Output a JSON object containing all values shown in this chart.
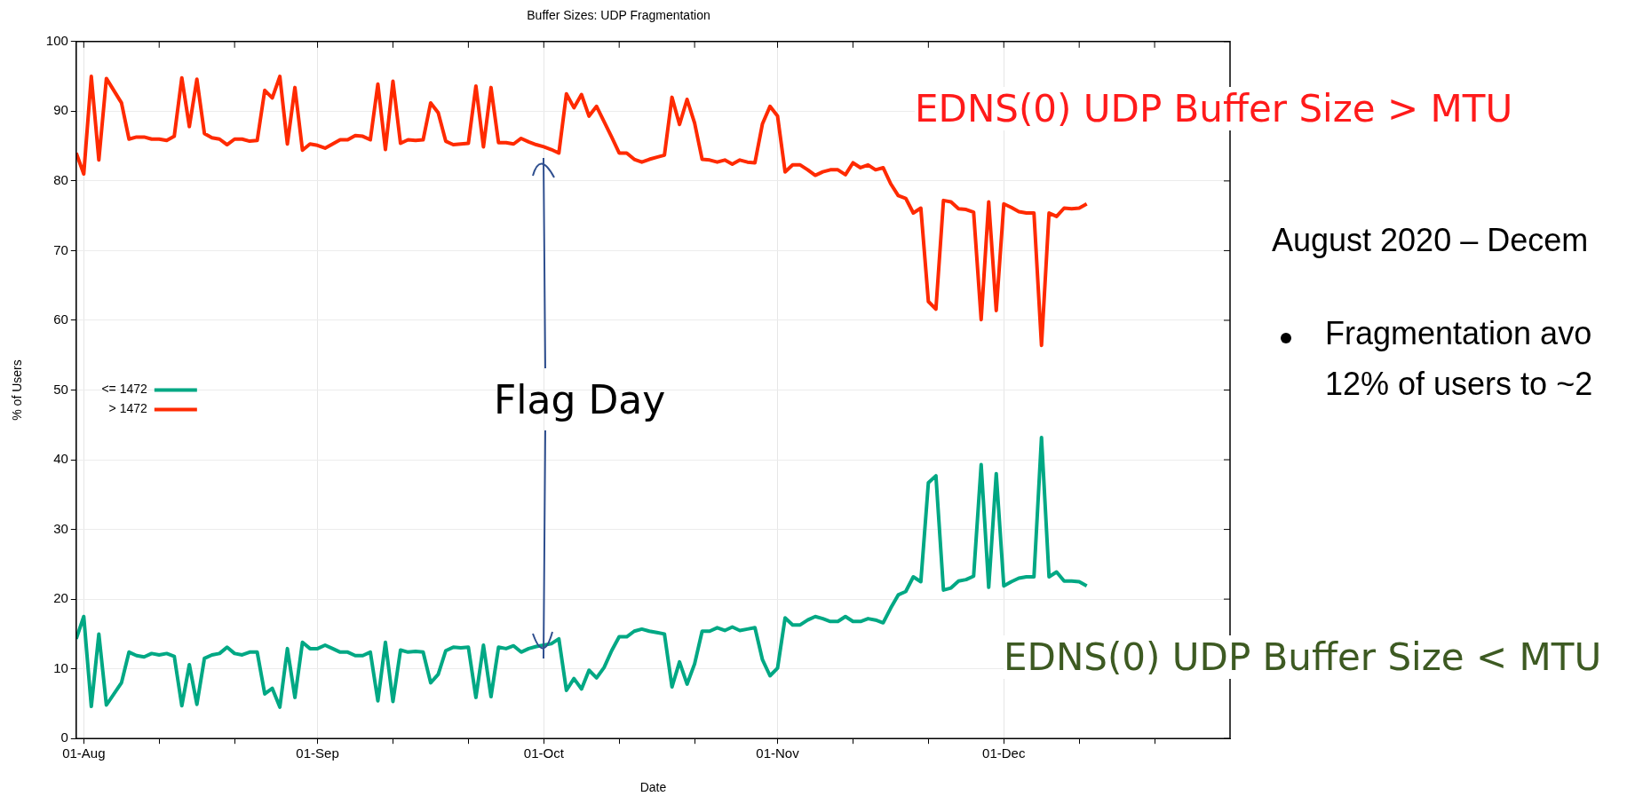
{
  "chart_data": {
    "type": "line",
    "title": "Buffer Sizes: UDP Fragmentation",
    "xlabel": "Date",
    "ylabel": "% of Users",
    "x": [
      "--07-31",
      "--08-01",
      "--08-02",
      "--08-03",
      "--08-04",
      "--08-06",
      "--08-07",
      "--08-08",
      "--08-09",
      "--08-10",
      "--08-11",
      "--08-12",
      "--08-13",
      "--08-14",
      "--08-15",
      "--08-16",
      "--08-17",
      "--08-18",
      "--08-19",
      "--08-20",
      "--08-21",
      "--08-22",
      "--08-23",
      "--08-24",
      "--08-25",
      "--08-26",
      "--08-27",
      "--08-28",
      "--08-29",
      "--08-30",
      "--08-31",
      "--09-01",
      "--09-02",
      "--09-03",
      "--09-04",
      "--09-05",
      "--09-06",
      "--09-07",
      "--09-08",
      "--09-09",
      "--09-10",
      "--09-11",
      "--09-12",
      "--09-13",
      "--09-14",
      "--09-15",
      "--09-16",
      "--09-17",
      "--09-18",
      "--09-19",
      "--09-20",
      "--09-21",
      "--09-22",
      "--09-23",
      "--09-24",
      "--09-25",
      "--09-26",
      "--09-27",
      "--09-28",
      "--09-29",
      "--09-30",
      "--10-01",
      "--10-02",
      "--10-03",
      "--10-04",
      "--10-05",
      "--10-06",
      "--10-07",
      "--10-08",
      "--10-09",
      "--10-10",
      "--10-11",
      "--10-12",
      "--10-13",
      "--10-14",
      "--10-15",
      "--10-16",
      "--10-17",
      "--10-18",
      "--10-19",
      "--10-20",
      "--10-21",
      "--10-22",
      "--10-23",
      "--10-24",
      "--10-25",
      "--10-26",
      "--10-27",
      "--10-28",
      "--10-29",
      "--10-30",
      "--10-31",
      "--11-01",
      "--11-02",
      "--11-03",
      "--11-04",
      "--11-05",
      "--11-06",
      "--11-07",
      "--11-08",
      "--11-09",
      "--11-10",
      "--11-11",
      "--11-12",
      "--11-13",
      "--11-14",
      "--11-15",
      "--11-16",
      "--11-17",
      "--11-18",
      "--11-19",
      "--11-20",
      "--11-21",
      "--11-22",
      "--11-23",
      "--11-24",
      "--11-25",
      "--11-26",
      "--11-27",
      "--11-28",
      "--11-29",
      "--11-30",
      "--12-01",
      "--12-02",
      "--12-03",
      "--12-04",
      "--12-05",
      "--12-06",
      "--12-07",
      "--12-08",
      "--12-09",
      "--12-10",
      "--12-11",
      "--12-12"
    ],
    "series": [
      {
        "name": "<= 1472",
        "color": "#00a884",
        "values": [
          14.3,
          17.5,
          4.6,
          15,
          4.8,
          8,
          12.4,
          11.9,
          11.7,
          12.2,
          12,
          12.2,
          11.8,
          4.7,
          10.6,
          4.9,
          11.5,
          12,
          12.2,
          13.1,
          12.2,
          12,
          12.4,
          12.4,
          6.4,
          7.2,
          4.5,
          12.9,
          5.9,
          13.8,
          12.9,
          12.9,
          13.4,
          12.9,
          12.4,
          12.4,
          11.9,
          11.9,
          12.4,
          5.4,
          13.8,
          5.3,
          12.7,
          12.4,
          12.5,
          12.4,
          8,
          9.2,
          12.6,
          13.1,
          13,
          13.1,
          5.9,
          13.4,
          6,
          13.1,
          12.9,
          13.3,
          12.4,
          12.9,
          13.2,
          13.4,
          13.6,
          14.3,
          6.9,
          8.6,
          7.1,
          9.8,
          8.7,
          10.2,
          12.6,
          14.6,
          14.6,
          15.4,
          15.7,
          15.4,
          15.2,
          15,
          7.4,
          11,
          7.8,
          10.7,
          15.4,
          15.4,
          15.9,
          15.5,
          16,
          15.5,
          15.7,
          15.9,
          11.3,
          9,
          10.1,
          17.3,
          16.3,
          16.3,
          17,
          17.5,
          17.2,
          16.8,
          16.8,
          17.5,
          16.8,
          16.8,
          17.2,
          17,
          16.6,
          18.7,
          20.6,
          21.1,
          23.2,
          22.5,
          36.7,
          37.7,
          21.3,
          21.6,
          22.6,
          22.8,
          23.3,
          39.3,
          21.7,
          38,
          21.9,
          22.5,
          23,
          23.2,
          23.2,
          43.2,
          23.2,
          23.9,
          22.6,
          22.6,
          22.5,
          21.9
        ]
      },
      {
        "name": "> 1472",
        "color": "#ff2a00",
        "values": [
          84,
          81,
          95,
          83,
          94.7,
          91.2,
          86,
          86.3,
          86.3,
          86,
          86,
          85.8,
          86.4,
          94.8,
          87.8,
          94.6,
          86.8,
          86.2,
          86,
          85.2,
          86,
          86,
          85.7,
          85.8,
          93,
          91.9,
          95,
          85.3,
          93.4,
          84.4,
          85.3,
          85.1,
          84.7,
          85.3,
          85.9,
          85.9,
          86.5,
          86.4,
          85.9,
          93.9,
          84.5,
          94.3,
          85.4,
          85.9,
          85.8,
          85.9,
          91.2,
          89.8,
          85.7,
          85.2,
          85.3,
          85.4,
          93.6,
          84.9,
          93.4,
          85.5,
          85.5,
          85.3,
          86.1,
          85.6,
          85.2,
          84.9,
          84.5,
          84,
          92.5,
          90.5,
          92.4,
          89.3,
          90.7,
          88.5,
          86.3,
          84,
          84,
          83.1,
          82.7,
          83.1,
          83.4,
          83.7,
          92,
          88.1,
          91.7,
          88.3,
          83.1,
          83,
          82.7,
          83,
          82.4,
          83,
          82.7,
          82.6,
          88.2,
          90.7,
          89.3,
          81.3,
          82.3,
          82.3,
          81.6,
          80.8,
          81.3,
          81.6,
          81.6,
          80.9,
          82.6,
          81.9,
          82.3,
          81.6,
          81.9,
          79.6,
          77.9,
          77.5,
          75.4,
          76.1,
          62.7,
          61.6,
          77.2,
          77,
          76,
          75.9,
          75.5,
          60.1,
          77,
          61.4,
          76.7,
          76.2,
          75.6,
          75.4,
          75.4,
          56.4,
          75.4,
          74.9,
          76.1,
          76,
          76.1,
          76.7
        ]
      }
    ],
    "xlim": [
      "--07-31",
      "--12-31"
    ],
    "xticks": [
      {
        "value": "--08-01",
        "label": "01-Aug"
      },
      {
        "value": "--08-11",
        "label": null
      },
      {
        "value": "--08-21",
        "label": null
      },
      {
        "value": "--09-01",
        "label": "01-Sep"
      },
      {
        "value": "--09-11",
        "label": null
      },
      {
        "value": "--09-21",
        "label": null
      },
      {
        "value": "--10-01",
        "label": "01-Oct"
      },
      {
        "value": "--10-11",
        "label": null
      },
      {
        "value": "--10-21",
        "label": null
      },
      {
        "value": "--11-01",
        "label": "01-Nov"
      },
      {
        "value": "--11-11",
        "label": null
      },
      {
        "value": "--11-21",
        "label": null
      },
      {
        "value": "--12-01",
        "label": "01-Dec"
      },
      {
        "value": "--12-11",
        "label": null
      },
      {
        "value": "--12-21",
        "label": null
      }
    ],
    "ylim": [
      0,
      100
    ],
    "yticks": [
      0,
      10,
      20,
      30,
      40,
      50,
      60,
      70,
      80,
      90,
      100
    ],
    "grid": true,
    "legend": "left",
    "line_style": "solid",
    "marker": "none",
    "annotations": [
      "Flag Day",
      "EDNS(0) UDP Buffer Size > MTU",
      "EDNS(0) UDP Buffer Size < MTU",
      "August 2020 – Decem",
      "Fragmentation avo",
      "12% of users to ~2"
    ]
  }
}
